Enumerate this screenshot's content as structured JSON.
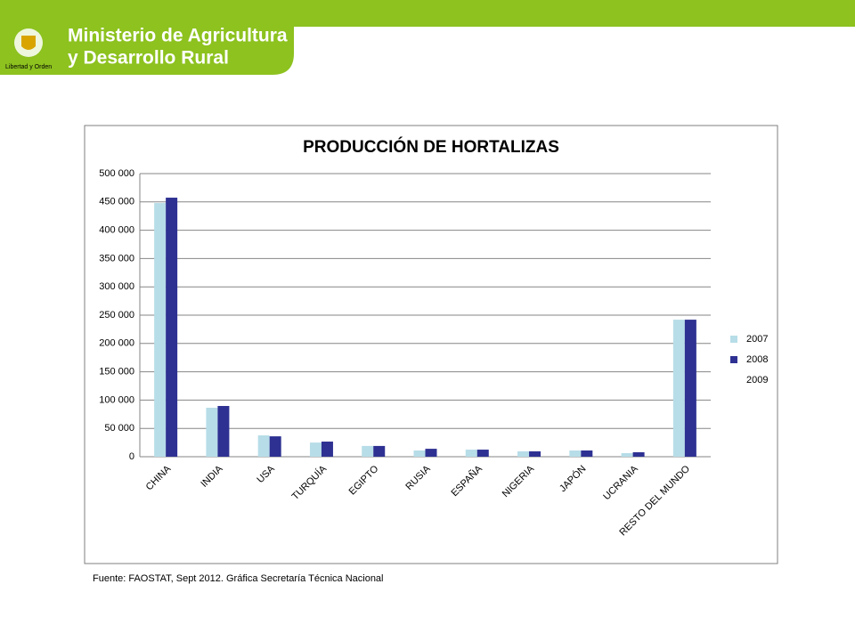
{
  "header": {
    "title_line1": "Ministerio de Agricultura",
    "title_line2": "y Desarrollo Rural",
    "motto": "Libertad y Orden"
  },
  "chart_data": {
    "type": "bar",
    "title": "PRODUCCIÓN DE HORTALIZAS",
    "source": "Fuente: FAOSTAT,  Sept 2012.  Gráfica Secretaría Técnica Nacional",
    "categories": [
      "CHINA",
      "INDIA",
      "USA",
      "TURQUÍA",
      "EGIPTO",
      "RUSIA",
      "ESPAÑA",
      "NIGERIA",
      "JAPÓN",
      "UCRANIA",
      "RESTO DEL MUNDO"
    ],
    "series": [
      {
        "name": "2007",
        "color": "#b7dde8",
        "values": [
          448000,
          86500,
          37700,
          25000,
          19000,
          11000,
          12500,
          9500,
          11000,
          6300,
          242000
        ]
      },
      {
        "name": "2008",
        "color": "#2e3192",
        "values": [
          457500,
          89600,
          36000,
          26700,
          19000,
          14000,
          12500,
          9500,
          11000,
          7900,
          242000
        ]
      },
      {
        "name": "2009",
        "color": "#ffffff",
        "values": [
          null,
          null,
          null,
          null,
          null,
          null,
          null,
          null,
          null,
          null,
          null
        ]
      }
    ],
    "ylim": [
      0,
      500000
    ],
    "yticks": [
      0,
      {
        "value": 50000,
        "label": "50 000"
      },
      {
        "value": 100000,
        "label": "100 000"
      },
      {
        "value": 150000,
        "label": "150 000"
      },
      {
        "value": 200000,
        "label": "200 000"
      },
      {
        "value": 250000,
        "label": "250 000"
      },
      {
        "value": 300000,
        "label": "300 000"
      },
      {
        "value": 350000,
        "label": "350 000"
      },
      {
        "value": 400000,
        "label": "400 000"
      },
      {
        "value": 450000,
        "label": "450 000"
      },
      {
        "value": 500000,
        "label": "500 000"
      }
    ],
    "grid": true,
    "legend": "right"
  }
}
